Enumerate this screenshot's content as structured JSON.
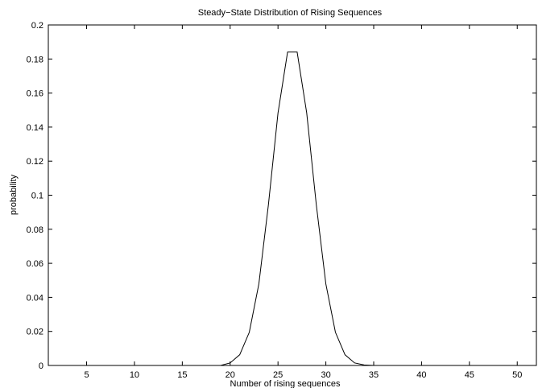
{
  "chart_data": {
    "type": "line",
    "title": "Steady−State Distribution of Rising Sequences",
    "xlabel": "Number of rising sequences",
    "ylabel": "probability",
    "xlim": [
      1,
      52
    ],
    "ylim": [
      0,
      0.2
    ],
    "x_ticks": [
      5,
      10,
      15,
      20,
      25,
      30,
      35,
      40,
      45,
      50
    ],
    "x_tick_labels": [
      "5",
      "10",
      "15",
      "20",
      "25",
      "30",
      "35",
      "40",
      "45",
      "50"
    ],
    "y_ticks": [
      0,
      0.02,
      0.04,
      0.06,
      0.08,
      0.1,
      0.12,
      0.14,
      0.16,
      0.18,
      0.2
    ],
    "y_tick_labels": [
      "0",
      "0.02",
      "0.04",
      "0.06",
      "0.08",
      "0.1",
      "0.12",
      "0.14",
      "0.16",
      "0.18",
      "0.2"
    ],
    "grid": false,
    "line_color": "#000000",
    "series": [
      {
        "x": [
          1,
          2,
          3,
          4,
          5,
          6,
          7,
          8,
          9,
          10,
          11,
          12,
          13,
          14,
          15,
          16,
          17,
          18,
          19,
          20,
          21,
          22,
          23,
          24,
          25,
          26,
          27,
          28,
          29,
          30,
          31,
          32,
          33,
          34,
          35,
          36,
          37,
          38,
          39,
          40,
          41,
          42,
          43,
          44,
          45,
          46,
          47,
          48,
          49,
          50,
          51,
          52
        ],
        "values": [
          0,
          0,
          0,
          0,
          0,
          0,
          0,
          0,
          0,
          0,
          0,
          0,
          0,
          0,
          0,
          0,
          0,
          0,
          0,
          0.0015,
          0.0063,
          0.0195,
          0.0479,
          0.0945,
          0.1483,
          0.1841,
          0.1841,
          0.1483,
          0.0945,
          0.0479,
          0.0195,
          0.0063,
          0.0015,
          0.0003,
          0,
          0,
          0,
          0,
          0,
          0,
          0,
          0,
          0,
          0,
          0,
          0,
          0,
          0,
          0,
          0,
          0,
          0
        ]
      }
    ]
  }
}
